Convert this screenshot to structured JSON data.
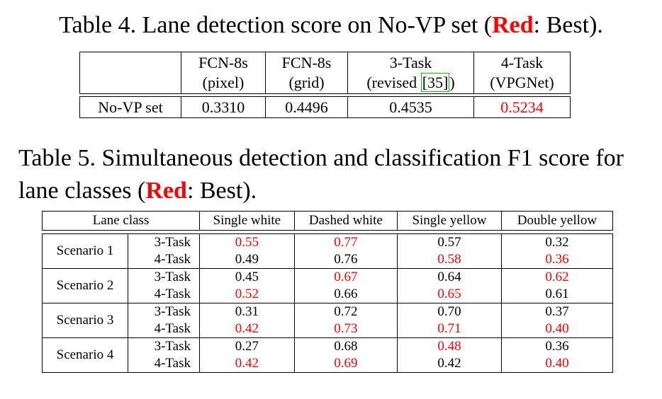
{
  "table4": {
    "caption_pre": "Table 4. Lane detection score on No-VP set (",
    "caption_red": "Red",
    "caption_post": ": Best).",
    "headers": [
      {
        "l1": "FCN-8s",
        "l2": "(pixel)"
      },
      {
        "l1": "FCN-8s",
        "l2": "(grid)"
      },
      {
        "l1": "3-Task",
        "l2_pre": "(revised ",
        "cite": "[35]",
        "l2_post": ")"
      },
      {
        "l1": "4-Task",
        "l2": "(VPGNet)"
      }
    ],
    "row_label": "No-VP set",
    "values": [
      "0.3310",
      "0.4496",
      "0.4535",
      "0.5234"
    ],
    "best_index": 3
  },
  "table5": {
    "caption_pre": "Table 5. Simultaneous detection and classification F1 score for lane classes (",
    "caption_red": "Red",
    "caption_post": ": Best).",
    "headers": [
      "Lane class",
      "Single white",
      "Dashed white",
      "Single yellow",
      "Double yellow"
    ],
    "scenarios": [
      {
        "name": "Scenario 1",
        "rows": [
          {
            "method": "3-Task",
            "values": [
              "0.55",
              "0.77",
              "0.57",
              "0.32"
            ],
            "best": [
              true,
              true,
              false,
              false
            ]
          },
          {
            "method": "4-Task",
            "values": [
              "0.49",
              "0.76",
              "0.58",
              "0.36"
            ],
            "best": [
              false,
              false,
              true,
              true
            ]
          }
        ]
      },
      {
        "name": "Scenario 2",
        "rows": [
          {
            "method": "3-Task",
            "values": [
              "0.45",
              "0.67",
              "0.64",
              "0.62"
            ],
            "best": [
              false,
              true,
              false,
              true
            ]
          },
          {
            "method": "4-Task",
            "values": [
              "0.52",
              "0.66",
              "0.65",
              "0.61"
            ],
            "best": [
              true,
              false,
              true,
              false
            ]
          }
        ]
      },
      {
        "name": "Scenario 3",
        "rows": [
          {
            "method": "3-Task",
            "values": [
              "0.31",
              "0.72",
              "0.70",
              "0.37"
            ],
            "best": [
              false,
              false,
              false,
              false
            ]
          },
          {
            "method": "4-Task",
            "values": [
              "0.42",
              "0.73",
              "0.71",
              "0.40"
            ],
            "best": [
              true,
              true,
              true,
              true
            ]
          }
        ]
      },
      {
        "name": "Scenario 4",
        "rows": [
          {
            "method": "3-Task",
            "values": [
              "0.27",
              "0.68",
              "0.48",
              "0.36"
            ],
            "best": [
              false,
              false,
              true,
              false
            ]
          },
          {
            "method": "4-Task",
            "values": [
              "0.42",
              "0.69",
              "0.42",
              "0.40"
            ],
            "best": [
              true,
              true,
              false,
              true
            ]
          }
        ]
      }
    ]
  },
  "colors": {
    "best": "#ff0000",
    "citation_box": "#00cc00"
  }
}
